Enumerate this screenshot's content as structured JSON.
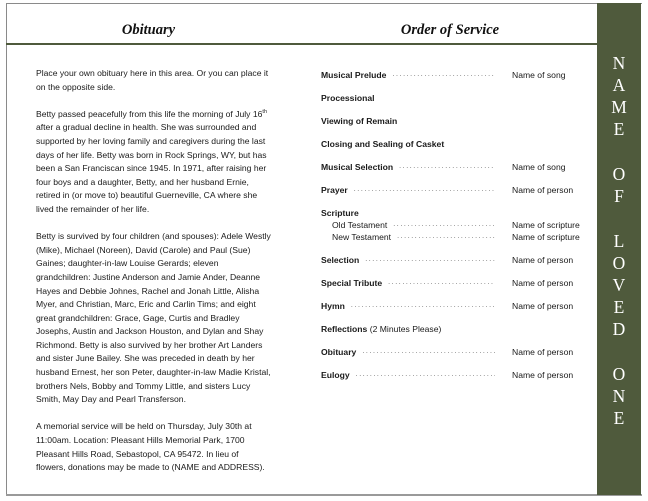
{
  "obituary": {
    "title": "Obituary",
    "paragraphs": [
      [
        "Place your own obituary here in this area. Or you can place it",
        "on the opposite side."
      ],
      [
        "Betty passed peacefully from this life the morning of July 16",
        "after a gradual decline in health.  She was surrounded and",
        "supported by her loving family and caregivers during the last",
        "days of her life.  Betty was born in Rock Springs, WY, but has",
        "been a San Franciscan since 1945.  In 1971, after raising her",
        "four boys and a daughter, Betty, and her husband Ernie,",
        "retired in (or move to) beautiful Guerneville, CA where she",
        "lived the remainder of her life."
      ],
      [
        "Betty is survived by four children (and spouses): Adele Westly",
        "(Mike), Michael (Noreen), David (Carole) and Paul (Sue)",
        "Gaines;  daughter-in-law Louise Gerards;  eleven",
        "grandchildren: Justine Anderson and Jamie Ander, Deanne",
        "Hayes and Debbie Johnes, Rachel and Jonah Little, Alisha",
        "Myer, and Christian, Marc, Eric and Carlin Tims;  and eight",
        "great grandchildren: Grace, Gage, Curtis and Bradley",
        "Josephs, Austin and Jackson Houston, and Dylan and Shay",
        "Richmond.  Betty is also survived by her brother Art Landers",
        "and sister June Bailey.  She was preceded in death by her",
        "husband Ernest, her son Peter, daughter-in-law Madie Kristal,",
        "brothers Nels, Bobby and Tommy Little, and sisters Lucy",
        "Smith, May Day and Pearl Transferson."
      ],
      [
        "A memorial service will be held on Thursday, July 30th at",
        "11:00am.  Location:  Pleasant Hills Memorial Park, 1700",
        "Pleasant Hills Road, Sebastopol, CA 95472.  In lieu of",
        "flowers, donations may be made to (NAME and ADDRESS)."
      ]
    ],
    "superscript": "th"
  },
  "order_of_service": {
    "title": "Order of Service",
    "items": [
      {
        "label": "Musical Prelude",
        "value": "Name of song"
      },
      {
        "label": "Processional"
      },
      {
        "label": "Viewing of Remain"
      },
      {
        "label": "Closing and Sealing of Casket"
      },
      {
        "label": "Musical Selection",
        "value": "Name of song"
      },
      {
        "label": "Prayer",
        "value": "Name of person"
      },
      {
        "label": "Scripture"
      },
      {
        "label": "Old Testament",
        "value": "Name of scripture",
        "sub": true
      },
      {
        "label": "New Testament",
        "value": "Name of scripture",
        "sub": true
      },
      {
        "label": "Selection",
        "value": "Name of person"
      },
      {
        "label": "Special Tribute",
        "value": "Name of person"
      },
      {
        "label": "Hymn",
        "value": "Name of person"
      },
      {
        "label": "Reflections",
        "extra": " (2 Minutes Please)"
      },
      {
        "label": "Obituary",
        "value": "Name of person"
      },
      {
        "label": "Eulogy",
        "value": "Name of person"
      }
    ]
  },
  "side_band": {
    "text": "NAME OF LOVED ONE",
    "color": "#4f5a3c"
  }
}
